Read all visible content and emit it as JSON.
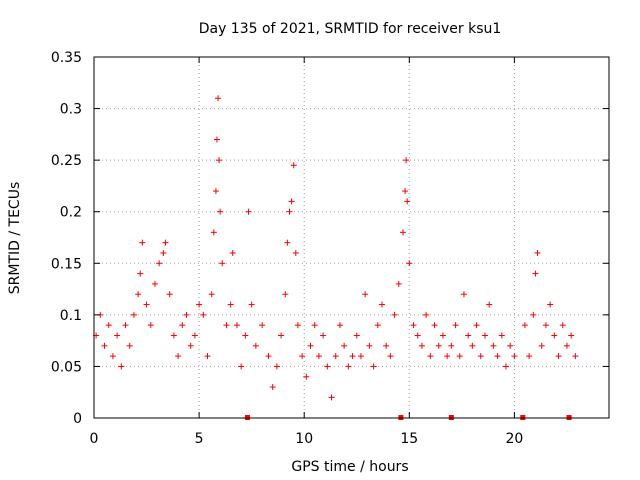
{
  "chart_data": {
    "type": "scatter",
    "title": "Day 135 of 2021, SRMTID for receiver ksu1",
    "xlabel": "GPS time / hours",
    "ylabel": "SRMTID / TECUs",
    "xlim": [
      0,
      24.5
    ],
    "ylim": [
      0,
      0.35
    ],
    "grid": true,
    "xticks": [
      0,
      5,
      10,
      15,
      20
    ],
    "yticks": [
      0,
      0.05,
      0.1,
      0.15,
      0.2,
      0.25,
      0.3,
      0.35
    ],
    "xtick_labels": [
      "0",
      "5",
      "10",
      "15",
      "20"
    ],
    "ytick_labels": [
      "0",
      "0.05",
      "0.1",
      "0.15",
      "0.2",
      "0.25",
      "0.3",
      "0.35"
    ],
    "marker": "+",
    "marker_color": "#ff0000",
    "baseline_markers_x": [
      7.3,
      14.6,
      17.0,
      20.4,
      22.6
    ],
    "series": [
      {
        "name": "SRMTID",
        "points": [
          [
            0.1,
            0.08
          ],
          [
            0.3,
            0.1
          ],
          [
            0.5,
            0.07
          ],
          [
            0.7,
            0.09
          ],
          [
            0.9,
            0.06
          ],
          [
            1.1,
            0.08
          ],
          [
            1.3,
            0.05
          ],
          [
            1.5,
            0.09
          ],
          [
            1.7,
            0.07
          ],
          [
            1.9,
            0.1
          ],
          [
            2.1,
            0.12
          ],
          [
            2.2,
            0.14
          ],
          [
            2.3,
            0.17
          ],
          [
            2.5,
            0.11
          ],
          [
            2.7,
            0.09
          ],
          [
            2.9,
            0.13
          ],
          [
            3.1,
            0.15
          ],
          [
            3.3,
            0.16
          ],
          [
            3.4,
            0.17
          ],
          [
            3.6,
            0.12
          ],
          [
            3.8,
            0.08
          ],
          [
            4.0,
            0.06
          ],
          [
            4.2,
            0.09
          ],
          [
            4.4,
            0.1
          ],
          [
            4.6,
            0.07
          ],
          [
            4.8,
            0.08
          ],
          [
            5.0,
            0.11
          ],
          [
            5.2,
            0.1
          ],
          [
            5.4,
            0.06
          ],
          [
            5.6,
            0.12
          ],
          [
            5.7,
            0.18
          ],
          [
            5.8,
            0.22
          ],
          [
            5.85,
            0.27
          ],
          [
            5.9,
            0.31
          ],
          [
            5.95,
            0.25
          ],
          [
            6.0,
            0.2
          ],
          [
            6.1,
            0.15
          ],
          [
            6.3,
            0.09
          ],
          [
            6.5,
            0.11
          ],
          [
            6.6,
            0.16
          ],
          [
            6.8,
            0.09
          ],
          [
            7.0,
            0.05
          ],
          [
            7.2,
            0.08
          ],
          [
            7.35,
            0.2
          ],
          [
            7.5,
            0.11
          ],
          [
            7.7,
            0.07
          ],
          [
            8.0,
            0.09
          ],
          [
            8.3,
            0.06
          ],
          [
            8.5,
            0.03
          ],
          [
            8.7,
            0.05
          ],
          [
            8.9,
            0.08
          ],
          [
            9.1,
            0.12
          ],
          [
            9.2,
            0.17
          ],
          [
            9.3,
            0.2
          ],
          [
            9.4,
            0.21
          ],
          [
            9.5,
            0.245
          ],
          [
            9.6,
            0.16
          ],
          [
            9.7,
            0.09
          ],
          [
            9.9,
            0.06
          ],
          [
            10.1,
            0.04
          ],
          [
            10.3,
            0.07
          ],
          [
            10.5,
            0.09
          ],
          [
            10.7,
            0.06
          ],
          [
            10.9,
            0.08
          ],
          [
            11.1,
            0.05
          ],
          [
            11.3,
            0.02
          ],
          [
            11.5,
            0.06
          ],
          [
            11.7,
            0.09
          ],
          [
            11.9,
            0.07
          ],
          [
            12.1,
            0.05
          ],
          [
            12.3,
            0.06
          ],
          [
            12.5,
            0.08
          ],
          [
            12.7,
            0.06
          ],
          [
            12.9,
            0.12
          ],
          [
            13.1,
            0.07
          ],
          [
            13.3,
            0.05
          ],
          [
            13.5,
            0.09
          ],
          [
            13.7,
            0.11
          ],
          [
            13.9,
            0.07
          ],
          [
            14.1,
            0.06
          ],
          [
            14.3,
            0.1
          ],
          [
            14.5,
            0.13
          ],
          [
            14.7,
            0.18
          ],
          [
            14.8,
            0.22
          ],
          [
            14.85,
            0.25
          ],
          [
            14.9,
            0.21
          ],
          [
            15.0,
            0.15
          ],
          [
            15.2,
            0.09
          ],
          [
            15.4,
            0.08
          ],
          [
            15.6,
            0.07
          ],
          [
            15.8,
            0.1
          ],
          [
            16.0,
            0.06
          ],
          [
            16.2,
            0.09
          ],
          [
            16.4,
            0.07
          ],
          [
            16.6,
            0.08
          ],
          [
            16.8,
            0.06
          ],
          [
            17.0,
            0.07
          ],
          [
            17.2,
            0.09
          ],
          [
            17.4,
            0.06
          ],
          [
            17.6,
            0.12
          ],
          [
            17.8,
            0.08
          ],
          [
            18.0,
            0.07
          ],
          [
            18.2,
            0.09
          ],
          [
            18.4,
            0.06
          ],
          [
            18.6,
            0.08
          ],
          [
            18.8,
            0.11
          ],
          [
            19.0,
            0.07
          ],
          [
            19.2,
            0.06
          ],
          [
            19.4,
            0.08
          ],
          [
            19.6,
            0.05
          ],
          [
            19.8,
            0.07
          ],
          [
            20.0,
            0.06
          ],
          [
            20.5,
            0.09
          ],
          [
            20.7,
            0.06
          ],
          [
            20.9,
            0.1
          ],
          [
            21.0,
            0.14
          ],
          [
            21.1,
            0.16
          ],
          [
            21.3,
            0.07
          ],
          [
            21.5,
            0.09
          ],
          [
            21.7,
            0.11
          ],
          [
            21.9,
            0.08
          ],
          [
            22.1,
            0.06
          ],
          [
            22.3,
            0.09
          ],
          [
            22.5,
            0.07
          ],
          [
            22.7,
            0.08
          ],
          [
            22.9,
            0.06
          ]
        ]
      }
    ]
  }
}
